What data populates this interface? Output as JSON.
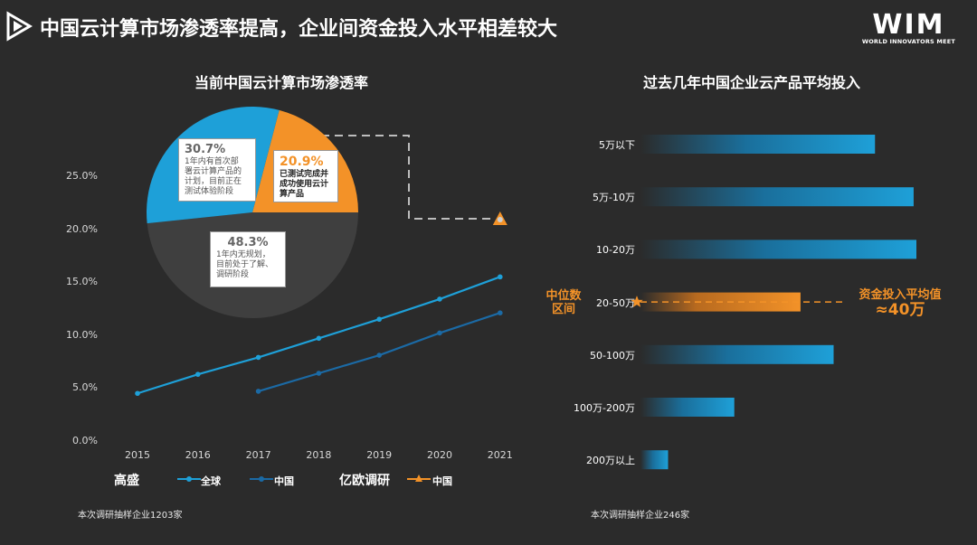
{
  "header": {
    "title": "中国云计算市场渗透率提高，企业间资金投入水平相差较大",
    "brand": "WIM",
    "brand_sub": "WORLD INNOVATORS MEET"
  },
  "left_panel": {
    "title": "当前中国云计算市场渗透率",
    "note": "本次调研抽样企业1203家",
    "pie": [
      {
        "pct": "30.7%",
        "text": "1年内有首次部署云计算产品的计划，目前正在测试体验阶段",
        "lines": [
          "1年内有首次部",
          "署云计算产品的",
          "计划，目前正在",
          "测试体验阶段"
        ],
        "value": 30.7,
        "color": "#1ea0d8"
      },
      {
        "pct": "20.9%",
        "text": "已测试完成并成功使用云计算产品",
        "lines": [
          "已测试完成并",
          "成功使用云计",
          "算产品"
        ],
        "value": 20.9,
        "color": "#f39228"
      },
      {
        "pct": "48.3%",
        "text": "1年内无规划，目前处于了解、调研阶段",
        "lines": [
          "1年内无规划，",
          "目前处于了解、",
          "调研阶段"
        ],
        "value": 48.3,
        "color": "#3f3f3f"
      }
    ]
  },
  "right_panel": {
    "title": "过去几年中国企业云产品平均投入",
    "note": "本次调研抽样企业246家",
    "median_label": "中位数\n区间",
    "median_line1": "中位数",
    "median_line2": "区间",
    "avg_line1": "资金投入平均值",
    "avg_line2": "≈40万"
  },
  "chart_data": [
    {
      "type": "line",
      "title": "",
      "x": [
        2015,
        2016,
        2017,
        2018,
        2019,
        2020,
        2021
      ],
      "xlabels": [
        "2015",
        "2016",
        "2017",
        "2018",
        "2019",
        "2020",
        "2021"
      ],
      "ylim": [
        0,
        27.5
      ],
      "yticks": [
        "0.0%",
        "5.0%",
        "10.0%",
        "15.0%",
        "20.0%",
        "25.0%"
      ],
      "ytick_values": [
        0,
        5,
        10,
        15,
        20,
        25
      ],
      "series": [
        {
          "name": "全球",
          "source": "高盛",
          "color": "#1ea0d8",
          "values": [
            4.5,
            6.3,
            7.9,
            9.7,
            11.5,
            13.4,
            15.5
          ]
        },
        {
          "name": "中国",
          "source": "高盛",
          "color": "#1b6aa5",
          "values": [
            null,
            null,
            4.7,
            6.4,
            8.1,
            10.2,
            12.1
          ]
        },
        {
          "name": "中国",
          "source": "亿欧调研",
          "color": "#f39228",
          "values": [
            null,
            null,
            null,
            null,
            null,
            null,
            20.9
          ]
        }
      ],
      "legend": {
        "sources": [
          "高盛",
          "亿欧调研"
        ],
        "items": [
          "全球",
          "中国",
          "中国"
        ]
      }
    },
    {
      "type": "bar",
      "orientation": "horizontal",
      "title": "过去几年中国企业云产品平均投入",
      "categories": [
        "5万以下",
        "5万-10万",
        "10-20万",
        "20-50万",
        "50-100万",
        "100万-200万",
        "200万以上"
      ],
      "values": [
        85,
        99,
        100,
        58,
        70,
        34,
        10
      ],
      "highlight": "20-50万"
    }
  ]
}
